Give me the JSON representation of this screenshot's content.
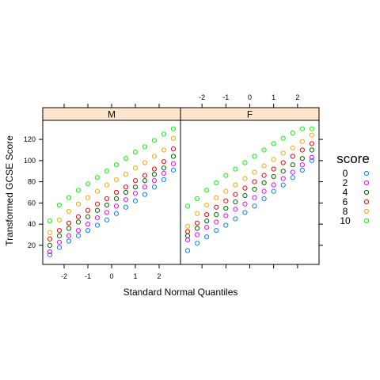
{
  "chart_data": {
    "type": "scatter",
    "xlabel": "Standard Normal Quantiles",
    "ylabel": "Transformed GCSE Score",
    "xlim": [
      -2.9,
      2.9
    ],
    "ylim": [
      2,
      138
    ],
    "x_ticks": [
      -2,
      -1,
      0,
      1,
      2
    ],
    "y_ticks": [
      20,
      40,
      60,
      80,
      100,
      120
    ],
    "panels": [
      {
        "label": "M",
        "series": [
          {
            "name": "0",
            "color": "#0080ff",
            "x": [
              -2.6,
              -2.2,
              -1.8,
              -1.4,
              -1.0,
              -0.6,
              -0.2,
              0.2,
              0.6,
              1.0,
              1.4,
              1.8,
              2.2,
              2.6
            ],
            "y": [
              11,
              18,
              24,
              29,
              34,
              39,
              44,
              50,
              56,
              62,
              68,
              75,
              82,
              91
            ]
          },
          {
            "name": "2",
            "color": "#ff00ff",
            "x": [
              -2.6,
              -2.2,
              -1.8,
              -1.4,
              -1.0,
              -0.6,
              -0.2,
              0.2,
              0.6,
              1.0,
              1.4,
              1.8,
              2.2,
              2.6
            ],
            "y": [
              14,
              23,
              29,
              34,
              40,
              46,
              51,
              57,
              63,
              69,
              75,
              81,
              88,
              97
            ]
          },
          {
            "name": "4",
            "color": "#006400",
            "x": [
              -2.6,
              -2.2,
              -1.8,
              -1.4,
              -1.0,
              -0.6,
              -0.2,
              0.2,
              0.6,
              1.0,
              1.4,
              1.8,
              2.2,
              2.6
            ],
            "y": [
              20,
              29,
              36,
              42,
              47,
              53,
              58,
              64,
              70,
              75,
              81,
              87,
              93,
              104
            ]
          },
          {
            "name": "6",
            "color": "#ff0000",
            "x": [
              -2.6,
              -2.2,
              -1.8,
              -1.4,
              -1.0,
              -0.6,
              -0.2,
              0.2,
              0.6,
              1.0,
              1.4,
              1.8,
              2.2,
              2.6
            ],
            "y": [
              26,
              34,
              41,
              47,
              53,
              59,
              64,
              70,
              75,
              81,
              86,
              92,
              99,
              111
            ]
          },
          {
            "name": "8",
            "color": "#ffa500",
            "x": [
              -2.6,
              -2.2,
              -1.8,
              -1.4,
              -1.0,
              -0.6,
              -0.2,
              0.2,
              0.6,
              1.0,
              1.4,
              1.8,
              2.2,
              2.6
            ],
            "y": [
              32,
              44,
              52,
              59,
              65,
              71,
              77,
              82,
              87,
              93,
              98,
              104,
              110,
              121
            ]
          },
          {
            "name": "10",
            "color": "#00ff00",
            "x": [
              -2.6,
              -2.2,
              -1.8,
              -1.4,
              -1.0,
              -0.6,
              -0.2,
              0.2,
              0.6,
              1.0,
              1.4,
              1.8,
              2.2,
              2.6
            ],
            "y": [
              43,
              58,
              65,
              72,
              78,
              84,
              90,
              96,
              102,
              108,
              113,
              119,
              125,
              130
            ]
          }
        ]
      },
      {
        "label": "F",
        "series": [
          {
            "name": "0",
            "color": "#0080ff",
            "x": [
              -2.6,
              -2.2,
              -1.8,
              -1.4,
              -1.0,
              -0.6,
              -0.2,
              0.2,
              0.6,
              1.0,
              1.4,
              1.8,
              2.2,
              2.6
            ],
            "y": [
              15,
              22,
              28,
              34,
              39,
              45,
              51,
              57,
              64,
              71,
              77,
              84,
              91,
              100
            ]
          },
          {
            "name": "2",
            "color": "#ff00ff",
            "x": [
              -2.6,
              -2.2,
              -1.8,
              -1.4,
              -1.0,
              -0.6,
              -0.2,
              0.2,
              0.6,
              1.0,
              1.4,
              1.8,
              2.2,
              2.6
            ],
            "y": [
              25,
              30,
              37,
              42,
              48,
              54,
              59,
              65,
              71,
              77,
              83,
              89,
              96,
              103
            ]
          },
          {
            "name": "4",
            "color": "#006400",
            "x": [
              -2.6,
              -2.2,
              -1.8,
              -1.4,
              -1.0,
              -0.6,
              -0.2,
              0.2,
              0.6,
              1.0,
              1.4,
              1.8,
              2.2,
              2.6
            ],
            "y": [
              29,
              36,
              43,
              49,
              55,
              61,
              67,
              73,
              79,
              85,
              90,
              96,
              102,
              110
            ]
          },
          {
            "name": "6",
            "color": "#ff0000",
            "x": [
              -2.6,
              -2.2,
              -1.8,
              -1.4,
              -1.0,
              -0.6,
              -0.2,
              0.2,
              0.6,
              1.0,
              1.4,
              1.8,
              2.2,
              2.6
            ],
            "y": [
              33,
              41,
              49,
              56,
              62,
              68,
              74,
              80,
              86,
              92,
              98,
              104,
              110,
              116
            ]
          },
          {
            "name": "8",
            "color": "#ffa500",
            "x": [
              -2.6,
              -2.2,
              -1.8,
              -1.4,
              -1.0,
              -0.6,
              -0.2,
              0.2,
              0.6,
              1.0,
              1.4,
              1.8,
              2.2,
              2.6
            ],
            "y": [
              38,
              50,
              58,
              65,
              71,
              77,
              83,
              89,
              95,
              101,
              107,
              112,
              118,
              124
            ]
          },
          {
            "name": "10",
            "color": "#00ff00",
            "x": [
              -2.6,
              -2.2,
              -1.8,
              -1.4,
              -1.0,
              -0.6,
              -0.2,
              0.2,
              0.6,
              1.0,
              1.4,
              1.8,
              2.2,
              2.6
            ],
            "y": [
              57,
              64,
              72,
              79,
              86,
              92,
              98,
              104,
              110,
              116,
              121,
              126,
              130,
              130
            ]
          }
        ]
      }
    ],
    "legend": {
      "title": "score",
      "placement": "right",
      "items": [
        {
          "label": "0",
          "color": "#0080ff"
        },
        {
          "label": "2",
          "color": "#ff00ff"
        },
        {
          "label": "4",
          "color": "#006400"
        },
        {
          "label": "6",
          "color": "#ff0000"
        },
        {
          "label": "8",
          "color": "#ffa500"
        },
        {
          "label": "10",
          "color": "#00ff00"
        }
      ]
    },
    "strip_color": "#ffe5cc"
  }
}
